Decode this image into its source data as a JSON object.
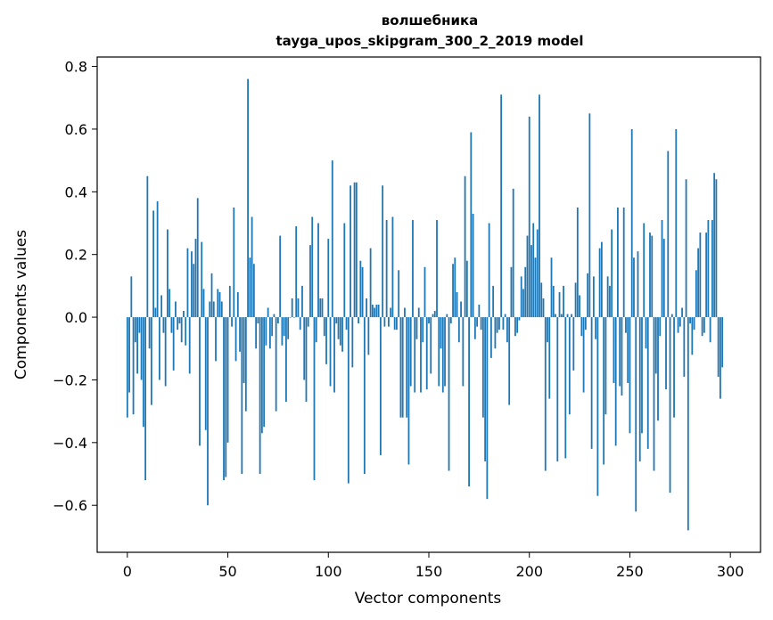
{
  "chart_data": {
    "type": "bar",
    "title_lines": [
      "волшебника",
      "tayga_upos_skipgram_300_2_2019 model"
    ],
    "xlabel": "Vector components",
    "ylabel": "Components values",
    "xlim": [
      -15,
      315
    ],
    "ylim": [
      -0.75,
      0.83
    ],
    "xticks": [
      0,
      50,
      100,
      150,
      200,
      250,
      300
    ],
    "xtick_labels": [
      "0",
      "50",
      "100",
      "150",
      "200",
      "250",
      "300"
    ],
    "yticks": [
      -0.6,
      -0.4,
      -0.2,
      0.0,
      0.2,
      0.4,
      0.6,
      0.8
    ],
    "ytick_labels": [
      "−0.6",
      "−0.4",
      "−0.2",
      "0.0",
      "0.2",
      "0.4",
      "0.6",
      "0.8"
    ],
    "bar_color": "#1f77b4",
    "grid": false,
    "legend": "none",
    "x_start": 0,
    "values": [
      -0.32,
      -0.24,
      0.13,
      -0.31,
      -0.08,
      -0.18,
      -0.05,
      -0.2,
      -0.35,
      -0.52,
      0.45,
      -0.1,
      -0.28,
      0.34,
      0.03,
      0.37,
      -0.2,
      0.07,
      -0.05,
      -0.22,
      0.28,
      0.09,
      -0.05,
      -0.17,
      0.05,
      -0.04,
      -0.02,
      -0.08,
      0.02,
      -0.09,
      0.22,
      -0.18,
      0.21,
      0.17,
      0.25,
      0.38,
      -0.41,
      0.24,
      0.09,
      -0.36,
      -0.6,
      0.05,
      0.14,
      0.05,
      -0.14,
      0.09,
      0.08,
      0.05,
      -0.52,
      -0.51,
      -0.4,
      0.1,
      -0.03,
      0.35,
      -0.14,
      0.08,
      -0.11,
      -0.5,
      -0.21,
      -0.3,
      0.76,
      0.19,
      0.32,
      0.17,
      -0.1,
      -0.02,
      -0.5,
      -0.37,
      -0.35,
      -0.09,
      0.03,
      -0.1,
      -0.06,
      0.01,
      -0.3,
      -0.02,
      0.26,
      -0.09,
      -0.06,
      -0.27,
      -0.07,
      0.0,
      0.06,
      0.0,
      0.29,
      0.06,
      -0.04,
      0.1,
      -0.2,
      -0.27,
      -0.03,
      0.23,
      0.32,
      -0.52,
      -0.08,
      0.3,
      0.06,
      0.06,
      -0.06,
      -0.15,
      0.25,
      -0.22,
      0.5,
      -0.24,
      -0.02,
      -0.07,
      -0.09,
      -0.11,
      0.3,
      -0.04,
      -0.53,
      0.42,
      -0.16,
      0.43,
      0.43,
      -0.02,
      0.18,
      0.16,
      -0.5,
      0.06,
      -0.12,
      0.22,
      0.04,
      0.03,
      0.04,
      0.04,
      -0.44,
      0.42,
      -0.03,
      0.31,
      -0.03,
      0.03,
      0.32,
      -0.04,
      -0.04,
      0.15,
      -0.32,
      -0.32,
      0.03,
      -0.32,
      -0.47,
      -0.22,
      0.31,
      -0.24,
      -0.07,
      0.03,
      -0.24,
      -0.08,
      0.16,
      -0.23,
      -0.02,
      -0.18,
      0.01,
      0.02,
      0.31,
      -0.22,
      -0.1,
      -0.24,
      -0.22,
      0.01,
      -0.49,
      -0.02,
      0.17,
      0.19,
      0.08,
      -0.08,
      0.05,
      -0.22,
      0.45,
      0.18,
      -0.54,
      0.59,
      0.33,
      -0.07,
      -0.03,
      0.04,
      -0.04,
      -0.32,
      -0.46,
      -0.58,
      0.3,
      -0.13,
      0.1,
      -0.1,
      -0.05,
      -0.04,
      0.71,
      -0.04,
      0.01,
      -0.08,
      -0.28,
      0.16,
      0.41,
      -0.06,
      -0.05,
      -0.01,
      0.13,
      0.09,
      0.16,
      0.26,
      0.64,
      0.23,
      0.3,
      0.19,
      0.28,
      0.71,
      0.11,
      0.06,
      -0.49,
      -0.08,
      -0.26,
      0.19,
      0.1,
      0.01,
      -0.46,
      0.08,
      0.01,
      0.1,
      -0.45,
      0.01,
      -0.31,
      0.01,
      -0.17,
      0.11,
      0.35,
      0.07,
      -0.06,
      -0.24,
      -0.04,
      0.14,
      0.65,
      -0.42,
      0.13,
      -0.07,
      -0.57,
      0.22,
      0.24,
      -0.47,
      -0.31,
      0.13,
      0.1,
      0.28,
      -0.21,
      -0.41,
      0.35,
      -0.22,
      -0.25,
      0.35,
      -0.05,
      -0.21,
      -0.37,
      0.6,
      0.19,
      -0.62,
      0.21,
      -0.46,
      -0.37,
      0.3,
      -0.1,
      -0.42,
      0.27,
      0.26,
      -0.49,
      -0.18,
      -0.33,
      -0.06,
      0.31,
      0.25,
      -0.23,
      0.53,
      -0.56,
      0.01,
      -0.32,
      0.6,
      -0.05,
      -0.03,
      0.03,
      -0.19,
      0.44,
      -0.68,
      -0.02,
      -0.12,
      -0.04,
      0.15,
      0.22,
      0.27,
      -0.06,
      -0.05,
      0.27,
      0.31,
      -0.08,
      0.31,
      0.46,
      0.44,
      -0.19,
      -0.26,
      -0.16
    ]
  }
}
